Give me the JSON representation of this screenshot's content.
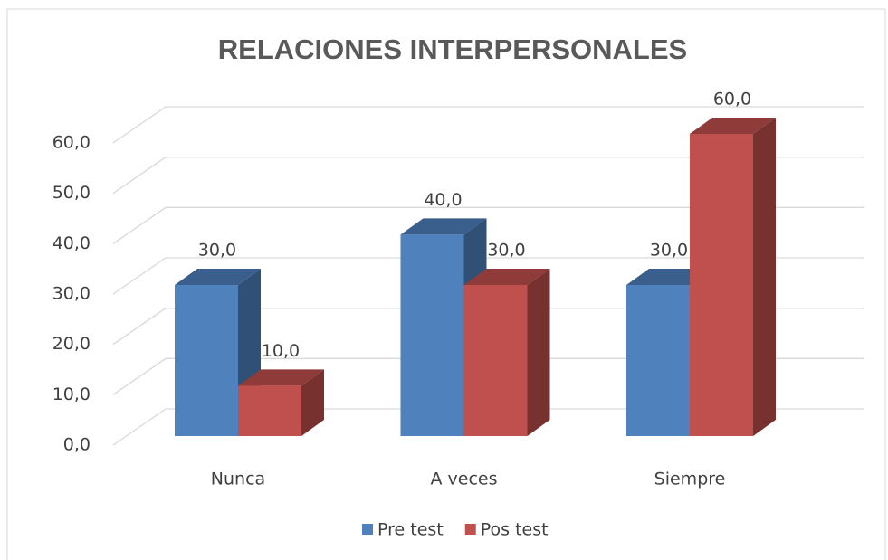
{
  "chart_data": {
    "type": "bar3d",
    "title": "RELACIONES INTERPERSONALES",
    "categories": [
      "Nunca",
      "A veces",
      "Siempre"
    ],
    "series": [
      {
        "name": "Pre test",
        "color": "#4f81bd",
        "values": [
          30,
          40,
          30
        ],
        "value_labels": [
          "30,0",
          "40,0",
          "30,0"
        ]
      },
      {
        "name": "Pos test",
        "color": "#c0504d",
        "values": [
          10,
          30,
          60
        ],
        "value_labels": [
          "10,0",
          "30,0",
          "60,0"
        ]
      }
    ],
    "ylim": [
      0,
      60
    ],
    "yticks": [
      {
        "value": 0,
        "label": "0,0"
      },
      {
        "value": 10,
        "label": "10,0"
      },
      {
        "value": 20,
        "label": "20,0"
      },
      {
        "value": 30,
        "label": "30,0"
      },
      {
        "value": 40,
        "label": "40,0"
      },
      {
        "value": 50,
        "label": "50,0"
      },
      {
        "value": 60,
        "label": "60,0"
      }
    ],
    "grid": true,
    "legend": "bottom"
  }
}
